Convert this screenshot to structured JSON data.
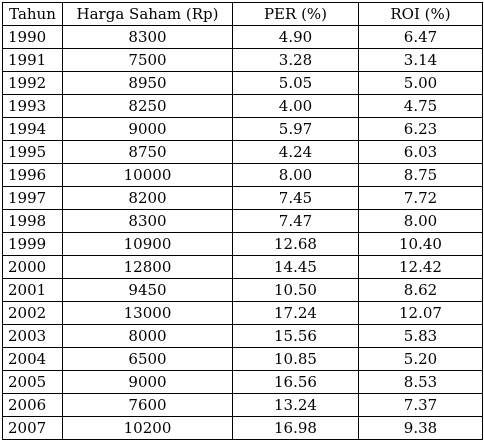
{
  "table": {
    "headers": [
      "Tahun",
      "Harga Saham (Rp)",
      "PER (%)",
      "ROI (%)"
    ],
    "rows": [
      [
        "1990",
        "8300",
        "4.90",
        "6.47"
      ],
      [
        "1991",
        "7500",
        "3.28",
        "3.14"
      ],
      [
        "1992",
        "8950",
        "5.05",
        "5.00"
      ],
      [
        "1993",
        "8250",
        "4.00",
        "4.75"
      ],
      [
        "1994",
        "9000",
        "5.97",
        "6.23"
      ],
      [
        "1995",
        "8750",
        "4.24",
        "6.03"
      ],
      [
        "1996",
        "10000",
        "8.00",
        "8.75"
      ],
      [
        "1997",
        "8200",
        "7.45",
        "7.72"
      ],
      [
        "1998",
        "8300",
        "7.47",
        "8.00"
      ],
      [
        "1999",
        "10900",
        "12.68",
        "10.40"
      ],
      [
        "2000",
        "12800",
        "14.45",
        "12.42"
      ],
      [
        "2001",
        "9450",
        "10.50",
        "8.62"
      ],
      [
        "2002",
        "13000",
        "17.24",
        "12.07"
      ],
      [
        "2003",
        "8000",
        "15.56",
        "5.83"
      ],
      [
        "2004",
        "6500",
        "10.85",
        "5.20"
      ],
      [
        "2005",
        "9000",
        "16.56",
        "8.53"
      ],
      [
        "2006",
        "7600",
        "13.24",
        "7.37"
      ],
      [
        "2007",
        "10200",
        "16.98",
        "9.38"
      ]
    ]
  }
}
